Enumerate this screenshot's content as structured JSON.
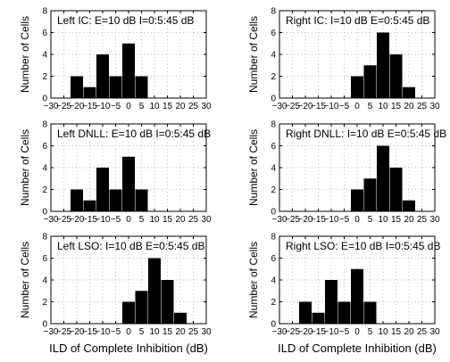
{
  "chart_data": [
    {
      "type": "bar",
      "panel_label": "Left IC: E=10 dB I=0:5:45 dB",
      "x": [
        -20,
        -15,
        -10,
        -5,
        0,
        5
      ],
      "values": [
        2,
        1,
        4,
        2,
        5,
        2
      ],
      "xticks": [
        "−30",
        "−25",
        "−20",
        "−15",
        "−10",
        "−5",
        "0",
        "5",
        "10",
        "15",
        "20",
        "25",
        "30"
      ],
      "yticks": [
        "0",
        "2",
        "4",
        "6",
        "8"
      ],
      "ylabel": "Number of Cells",
      "xlabel": "",
      "xlim": [
        -30,
        30
      ],
      "ylim": [
        0,
        8
      ],
      "grid": true,
      "bar_color": "#000000"
    },
    {
      "type": "bar",
      "panel_label": "Right IC: I=10 dB E=0:5:45 dB",
      "x": [
        0,
        5,
        10,
        15,
        20
      ],
      "values": [
        2,
        3,
        6,
        4,
        1
      ],
      "xticks": [
        "−30",
        "−25",
        "−20",
        "−15",
        "−10",
        "−5",
        "0",
        "5",
        "10",
        "15",
        "20",
        "25",
        "30"
      ],
      "yticks": [
        "0",
        "2",
        "4",
        "6",
        "8"
      ],
      "ylabel": "Number of Cells",
      "xlabel": "",
      "xlim": [
        -30,
        30
      ],
      "ylim": [
        0,
        8
      ],
      "grid": true,
      "bar_color": "#000000"
    },
    {
      "type": "bar",
      "panel_label": "Left DNLL: E=10 dB I=0:5:45 dB",
      "x": [
        -20,
        -15,
        -10,
        -5,
        0,
        5
      ],
      "values": [
        2,
        1,
        4,
        2,
        5,
        2
      ],
      "xticks": [
        "−30",
        "−25",
        "−20",
        "−15",
        "−10",
        "−5",
        "0",
        "5",
        "10",
        "15",
        "20",
        "25",
        "30"
      ],
      "yticks": [
        "0",
        "2",
        "4",
        "6",
        "8"
      ],
      "ylabel": "Number of Cells",
      "xlabel": "",
      "xlim": [
        -30,
        30
      ],
      "ylim": [
        0,
        8
      ],
      "grid": true,
      "bar_color": "#000000"
    },
    {
      "type": "bar",
      "panel_label": "Right DNLL: I=10 dB E=0:5:45 dB",
      "x": [
        0,
        5,
        10,
        15,
        20
      ],
      "values": [
        2,
        3,
        6,
        4,
        1
      ],
      "xticks": [
        "−30",
        "−25",
        "−20",
        "−15",
        "−10",
        "−5",
        "0",
        "5",
        "10",
        "15",
        "20",
        "25",
        "30"
      ],
      "yticks": [
        "0",
        "2",
        "4",
        "6",
        "8"
      ],
      "ylabel": "Number of Cells",
      "xlabel": "",
      "xlim": [
        -30,
        30
      ],
      "ylim": [
        0,
        8
      ],
      "grid": true,
      "bar_color": "#000000"
    },
    {
      "type": "bar",
      "panel_label": "Left LSO: I=10 dB E=0:5:45 dB",
      "x": [
        0,
        5,
        10,
        15,
        20
      ],
      "values": [
        2,
        3,
        6,
        4,
        1
      ],
      "xticks": [
        "−30",
        "−25",
        "−20",
        "−15",
        "−10",
        "−5",
        "0",
        "5",
        "10",
        "15",
        "20",
        "25",
        "30"
      ],
      "yticks": [
        "0",
        "2",
        "4",
        "6",
        "8"
      ],
      "ylabel": "Number of Cells",
      "xlabel": "ILD of Complete Inhibition (dB)",
      "xlim": [
        -30,
        30
      ],
      "ylim": [
        0,
        8
      ],
      "grid": true,
      "bar_color": "#000000"
    },
    {
      "type": "bar",
      "panel_label": "Right LSO: E=10 dB I=0:5:45 dB",
      "x": [
        -20,
        -15,
        -10,
        -5,
        0,
        5
      ],
      "values": [
        2,
        1,
        4,
        2,
        5,
        2
      ],
      "xticks": [
        "−30",
        "−25",
        "−20",
        "−15",
        "−10",
        "−5",
        "0",
        "5",
        "10",
        "15",
        "20",
        "25",
        "30"
      ],
      "yticks": [
        "0",
        "2",
        "4",
        "6",
        "8"
      ],
      "ylabel": "Number of Cells",
      "xlabel": "ILD of Complete Inhibition (dB)",
      "xlim": [
        -30,
        30
      ],
      "ylim": [
        0,
        8
      ],
      "grid": true,
      "bar_color": "#000000"
    }
  ]
}
